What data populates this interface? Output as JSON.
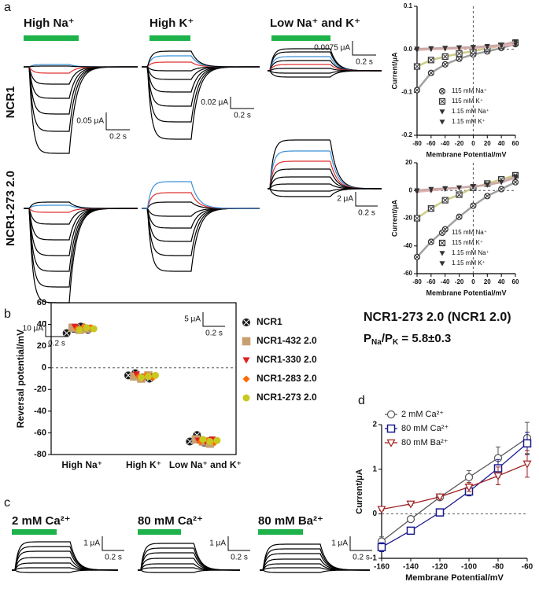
{
  "panel_labels": [
    "a",
    "b",
    "c",
    "d"
  ],
  "traces_a": {
    "conditions": [
      "High Na⁺",
      "High K⁺",
      "Low Na⁺ and K⁺"
    ],
    "rows": [
      "NCR1",
      "NCR1-273 2.0"
    ],
    "scale_bars": [
      [
        "0.05 μA",
        "0.2 s"
      ],
      [
        "0.02 μA",
        "0.2 s"
      ],
      [
        "0.0075 μA",
        "0.2 s"
      ],
      [
        "10 μA",
        "0.2 s"
      ],
      [
        "5 μA",
        "0.2 s"
      ],
      [
        "2 μA",
        "0.2 s"
      ]
    ]
  },
  "traces_c": {
    "conditions": [
      "2 mM Ca²⁺",
      "80 mM Ca²⁺",
      "80 mM Ba²⁺"
    ],
    "scale_bars": [
      [
        "1 μA",
        "0.2 s"
      ],
      [
        "1 μA",
        "0.2 s"
      ],
      [
        "1 μA",
        "0.2 s"
      ]
    ]
  },
  "selectivity": {
    "construct": "NCR1-273 2.0 (NCR1 2.0)",
    "ratio": [
      "P",
      "Na",
      "/P",
      "K",
      " =  5.8±0.3"
    ]
  },
  "chart_data": [
    {
      "type": "line",
      "y_label": "Current/μA",
      "x_label": "Membrane Potential/mV",
      "x": [
        -80,
        -60,
        -40,
        -20,
        0,
        20,
        40,
        60
      ],
      "xlim": [
        -80,
        60
      ],
      "xticks": [
        -80,
        -60,
        -40,
        -20,
        0,
        20,
        40,
        60
      ],
      "ylim": [
        -0.2,
        0.1
      ],
      "yticks": [
        -0.2,
        -0.1,
        {
          "value": 0,
          "label": "0.0"
        },
        0.1
      ],
      "zero_lines": [
        "x",
        "y"
      ],
      "series": [
        {
          "name": "115 mM Na⁺",
          "color": "#a0a0a0",
          "marker": "circle-x",
          "values": [
            -0.095,
            -0.055,
            -0.035,
            -0.022,
            -0.012,
            -0.005,
            0.003,
            0.012
          ]
        },
        {
          "name": "115 mM K⁺",
          "color": "#cccc88",
          "marker": "square-x",
          "values": [
            -0.04,
            -0.025,
            -0.017,
            -0.01,
            -0.004,
            0.002,
            0.008,
            0.015
          ]
        },
        {
          "name": "1.15 mM Na⁺",
          "color": "#e8b4b4",
          "marker": "triangle-down",
          "values": [
            -0.002,
            0,
            0.001,
            0.002,
            0.003,
            0.005,
            0.008,
            0.012
          ]
        },
        {
          "name": "1.15 mM K⁺",
          "color": "#c8a8a8",
          "marker": "triangle-down",
          "values": [
            0.001,
            0.002,
            0.003,
            0.004,
            0.005,
            0.007,
            0.01,
            0.018
          ]
        }
      ]
    },
    {
      "type": "line",
      "y_label": "Current/μA",
      "x_label": "Membrane Potential/mV",
      "x": [
        -80,
        -60,
        -40,
        -20,
        0,
        20,
        40,
        60
      ],
      "xlim": [
        -80,
        60
      ],
      "xticks": [
        -80,
        -60,
        -40,
        -20,
        0,
        20,
        40,
        60
      ],
      "ylim": [
        -60,
        20
      ],
      "yticks": [
        -60,
        -40,
        -20,
        0,
        20
      ],
      "zero_lines": [
        "x",
        "y"
      ],
      "series": [
        {
          "name": "115 mM Na⁺",
          "color": "#a0a0a0",
          "marker": "circle-x",
          "values": [
            -48,
            -37,
            -28,
            -19,
            -11,
            -4,
            1,
            6
          ]
        },
        {
          "name": "115 mM K⁺",
          "color": "#cccc88",
          "marker": "square-x",
          "values": [
            -20,
            -13,
            -7,
            -3,
            2,
            5,
            8,
            11
          ]
        },
        {
          "name": "1.15 mM Na⁺",
          "color": "#e8b4b4",
          "marker": "triangle-down",
          "values": [
            -1,
            0,
            1,
            2,
            3,
            4,
            6,
            9
          ]
        },
        {
          "name": "1.15 mM K⁺",
          "color": "#c8a8a8",
          "marker": "triangle-down",
          "values": [
            0,
            1,
            1.5,
            2,
            3,
            4,
            6,
            10
          ]
        }
      ]
    },
    {
      "type": "scatter",
      "y_label": "Reversal potential/mV",
      "categories": [
        "High Na⁺",
        "High K⁺",
        "Low Na⁺ and K⁺"
      ],
      "ylim": [
        -80,
        60
      ],
      "yticks": [
        -80,
        -60,
        -40,
        -20,
        0,
        20,
        40,
        60
      ],
      "zero_lines": [
        "y"
      ],
      "series": [
        {
          "name": "NCR1",
          "color": "#111111",
          "marker": "circle-x",
          "values": [
            [
              32,
              36,
              38,
              35
            ],
            [
              -7,
              -5,
              -9,
              -10
            ],
            [
              -68,
              -62,
              -69,
              -67
            ]
          ]
        },
        {
          "name": "NCR1-432 2.0",
          "color": "#c8a070",
          "marker": "square",
          "values": [
            [
              37,
              35,
              36
            ],
            [
              -8,
              -10,
              -7
            ],
            [
              -66,
              -68,
              -70
            ]
          ]
        },
        {
          "name": "NCR1-330 2.0",
          "color": "#e02020",
          "marker": "triangle-down",
          "values": [
            [
              38,
              36,
              37
            ],
            [
              -6,
              -9,
              -8
            ],
            [
              -67,
              -68,
              -66
            ]
          ]
        },
        {
          "name": "NCR1-283 2.0",
          "color": "#ff6a00",
          "marker": "diamond",
          "values": [
            [
              36,
              38,
              37
            ],
            [
              -8,
              -7,
              -9
            ],
            [
              -68,
              -67,
              -69
            ]
          ]
        },
        {
          "name": "NCR1-273 2.0",
          "color": "#c8c820",
          "marker": "circle",
          "values": [
            [
              35,
              37,
              36
            ],
            [
              -9,
              -8,
              -7
            ],
            [
              -66,
              -68,
              -67
            ]
          ]
        }
      ]
    },
    {
      "type": "line",
      "y_label": "Current/μA",
      "x_label": "Membrane Potential/mV",
      "x": [
        -160,
        -140,
        -120,
        -100,
        -80,
        -60
      ],
      "xlim": [
        -160,
        -60
      ],
      "xticks": [
        -160,
        -140,
        -120,
        -100,
        -80,
        -60
      ],
      "ylim": [
        -1,
        2
      ],
      "yticks": [
        -1,
        0,
        1,
        2
      ],
      "zero_lines": [
        "y"
      ],
      "series": [
        {
          "name": "2 mM Ca²⁺",
          "color": "#555555",
          "marker": "circle-open",
          "values": [
            -0.62,
            -0.12,
            0.37,
            0.82,
            1.25,
            1.7
          ],
          "errors": [
            0.1,
            0.05,
            0.05,
            0.15,
            0.25,
            0.35
          ]
        },
        {
          "name": "80 mM Ca²⁺",
          "color": "#1a1a8c",
          "marker": "square",
          "values": [
            -0.75,
            -0.38,
            0.03,
            0.5,
            1.02,
            1.58
          ],
          "errors": [
            0.1,
            0.05,
            0.03,
            0.1,
            0.2,
            0.25
          ]
        },
        {
          "name": "80 mM Ba²⁺",
          "color": "#a02020",
          "marker": "triangle-down-open",
          "values": [
            0.1,
            0.22,
            0.38,
            0.6,
            0.85,
            1.12
          ],
          "errors": [
            0.03,
            0.03,
            0.05,
            0.1,
            0.2,
            0.3
          ]
        }
      ]
    }
  ]
}
